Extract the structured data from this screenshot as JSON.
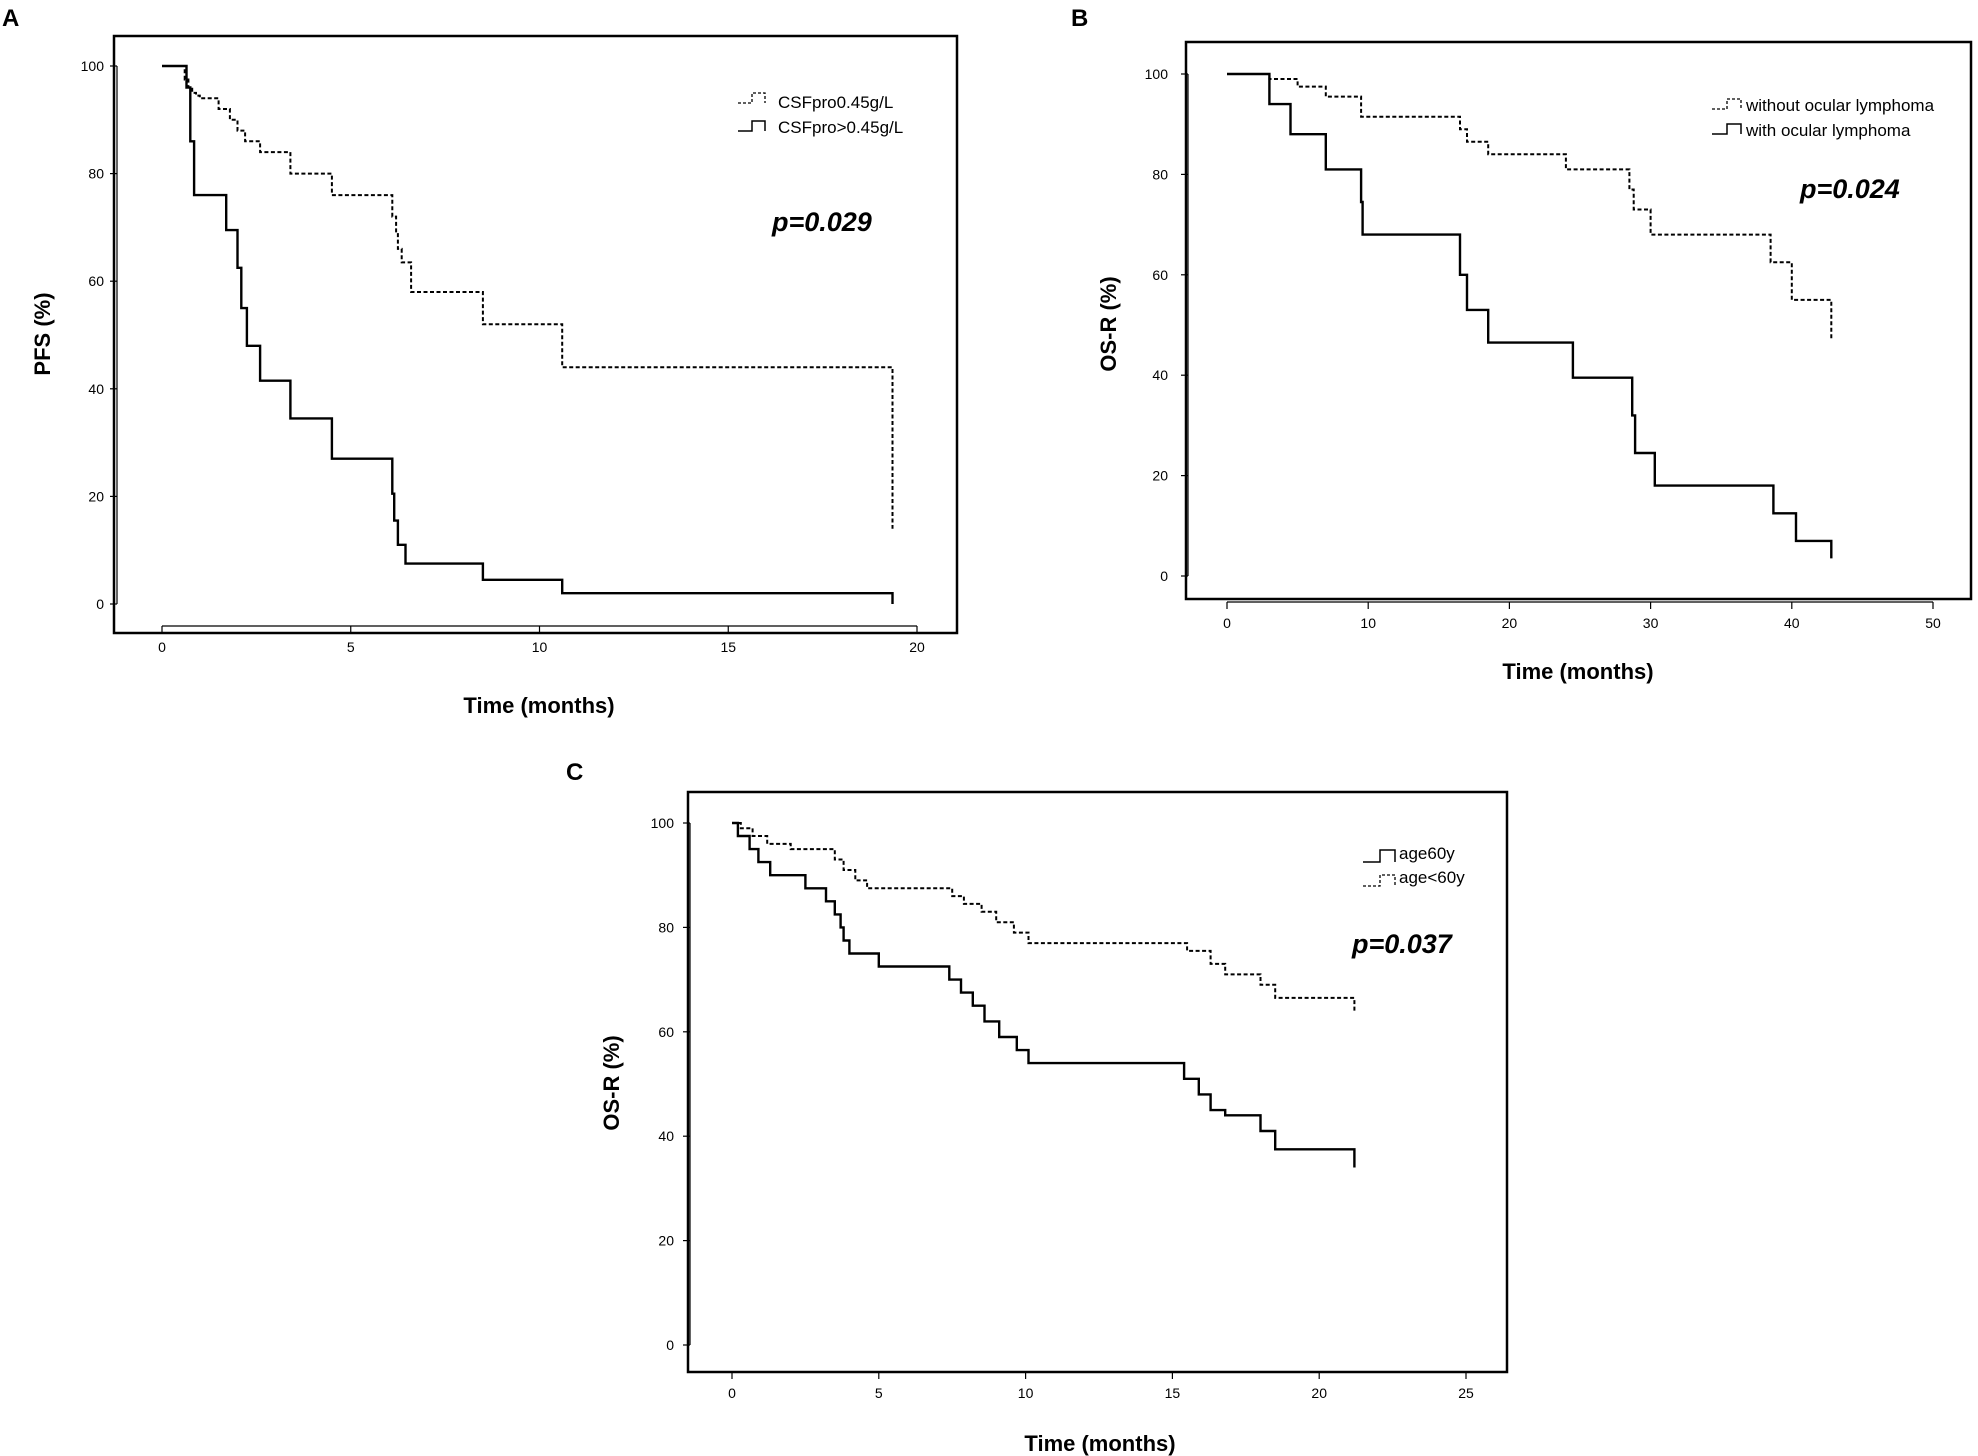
{
  "chart_data": [
    {
      "panel": "A",
      "type": "line",
      "ylabel": "PFS (%)",
      "xlabel": "Time (months)",
      "xlim": [
        0,
        20
      ],
      "ylim": [
        0,
        100
      ],
      "xticks": [
        "0",
        "5",
        "10",
        "15",
        "20"
      ],
      "yticks": [
        "0",
        "20",
        "40",
        "60",
        "80",
        "100"
      ],
      "pvalue": "p=0.029",
      "series": [
        {
          "name": "CSFpro0.45g/L",
          "style": "dashed",
          "x": [
            0,
            0.6,
            0.7,
            0.8,
            0.9,
            1.0,
            1.5,
            1.8,
            2.0,
            2.2,
            2.6,
            3.4,
            4.5,
            6.1,
            6.2,
            6.25,
            6.35,
            6.6,
            8.5,
            10.6,
            19.35
          ],
          "y": [
            100,
            97.5,
            96,
            95,
            94.5,
            94,
            92,
            90,
            88,
            86,
            84,
            80,
            76,
            72,
            69,
            66,
            63.5,
            58,
            52,
            44,
            14
          ]
        },
        {
          "name": "CSFpro>0.45g/L",
          "style": "solid",
          "x": [
            0,
            0.65,
            0.75,
            0.85,
            1.0,
            1.7,
            2.0,
            2.1,
            2.25,
            2.6,
            3.4,
            4.5,
            6.1,
            6.15,
            6.25,
            6.45,
            6.6,
            8.5,
            10.6,
            19.35
          ],
          "y": [
            100,
            96,
            86,
            76,
            76,
            69.5,
            62.5,
            55,
            48,
            41.5,
            34.5,
            27,
            20.5,
            15.5,
            11,
            7.5,
            7.5,
            4.5,
            2,
            0
          ]
        }
      ]
    },
    {
      "panel": "B",
      "type": "line",
      "ylabel": "OS-R (%)",
      "xlabel": "Time (months)",
      "xlim": [
        0,
        50
      ],
      "ylim": [
        0,
        100
      ],
      "xticks": [
        "0",
        "10",
        "20",
        "30",
        "40",
        "50"
      ],
      "yticks": [
        "0",
        "20",
        "40",
        "60",
        "80",
        "100"
      ],
      "pvalue": "p=0.024",
      "series": [
        {
          "name": "without ocular lymphoma",
          "style": "dashed",
          "x": [
            0,
            3,
            5,
            7,
            9.5,
            16.5,
            17,
            18.5,
            24,
            28.5,
            28.8,
            30,
            38.5,
            40,
            42.8
          ],
          "y": [
            100,
            99,
            97.5,
            95.5,
            91.5,
            89,
            86.5,
            84,
            81,
            77,
            73,
            68,
            62.5,
            55,
            47
          ]
        },
        {
          "name": "with ocular lymphoma",
          "style": "solid",
          "x": [
            0,
            3,
            4.5,
            7,
            9.5,
            9.6,
            16.5,
            17,
            18.5,
            24.5,
            28.7,
            28.9,
            30.3,
            38.7,
            40.3,
            42.8
          ],
          "y": [
            100,
            94,
            88,
            81,
            74.5,
            68,
            60,
            53,
            46.5,
            39.5,
            32,
            24.5,
            18,
            12.5,
            7,
            3.5
          ]
        }
      ]
    },
    {
      "panel": "C",
      "type": "line",
      "ylabel": "OS-R (%)",
      "xlabel": "Time (months)",
      "xlim": [
        0,
        25
      ],
      "ylim": [
        0,
        100
      ],
      "xticks": [
        "0",
        "5",
        "10",
        "15",
        "20",
        "25"
      ],
      "yticks": [
        "0",
        "20",
        "40",
        "60",
        "80",
        "100"
      ],
      "pvalue": "p=0.037",
      "series": [
        {
          "name": "age60y",
          "style": "solid",
          "x": [
            0,
            0.2,
            0.6,
            0.9,
            1.3,
            2.5,
            3.2,
            3.5,
            3.7,
            3.8,
            4.0,
            4.3,
            5.0,
            7.4,
            7.8,
            8.2,
            8.6,
            9.1,
            9.7,
            10.1,
            15.4,
            15.9,
            16.3,
            16.8,
            18.0,
            18.5,
            21.2
          ],
          "y": [
            100,
            97.5,
            95,
            92.5,
            90,
            87.5,
            85,
            82.5,
            80,
            77.5,
            75,
            75,
            72.5,
            70,
            67.5,
            65,
            62,
            59,
            56.5,
            54,
            51,
            48,
            45,
            44,
            41,
            37.5,
            34
          ]
        },
        {
          "name": "age<60y",
          "style": "dashed",
          "x": [
            0,
            0.3,
            0.7,
            1.2,
            2.0,
            3.5,
            3.8,
            4.2,
            4.6,
            5.3,
            7.5,
            7.9,
            8.5,
            9.0,
            9.6,
            10.1,
            15.5,
            16.3,
            16.8,
            18.0,
            18.5,
            21.2
          ],
          "y": [
            100,
            99,
            97.5,
            96,
            95,
            93,
            91,
            89,
            87.5,
            87.5,
            86,
            84.5,
            83,
            81,
            79,
            77,
            75.5,
            73,
            71,
            69,
            66.5,
            64
          ]
        }
      ]
    }
  ]
}
